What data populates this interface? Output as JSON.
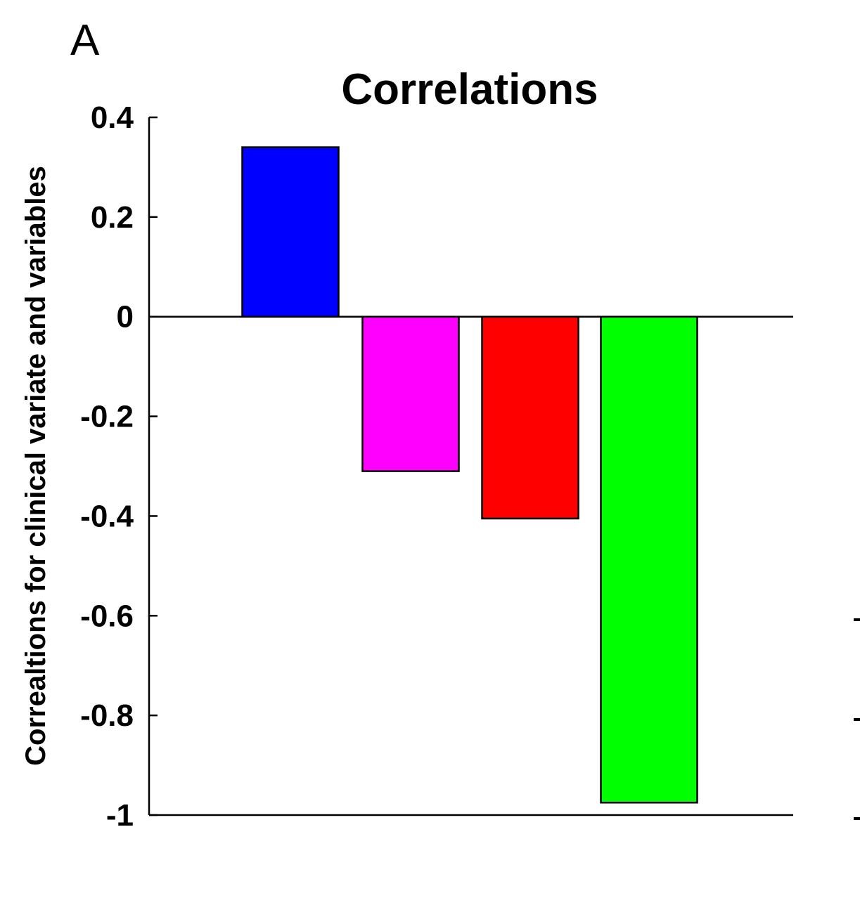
{
  "panel_label": "A",
  "chart_data": {
    "type": "bar",
    "title": "Correlations",
    "xlabel": "",
    "ylabel": "Correaltions for clinical variate and variables",
    "ylim": [
      -1,
      0.4
    ],
    "yticks": [
      0.4,
      0.2,
      0,
      -0.2,
      -0.4,
      -0.6,
      -0.8,
      -1
    ],
    "ytick_labels": [
      "0.4",
      "0.2",
      "0",
      "-0.2",
      "-0.4",
      "-0.6",
      "-0.8",
      "-1"
    ],
    "values": [
      0.34,
      -0.31,
      -0.405,
      -0.975
    ],
    "colors": [
      "#0000ff",
      "#ff00ff",
      "#ff0000",
      "#00ff00"
    ],
    "grid": false,
    "legend": "none"
  }
}
